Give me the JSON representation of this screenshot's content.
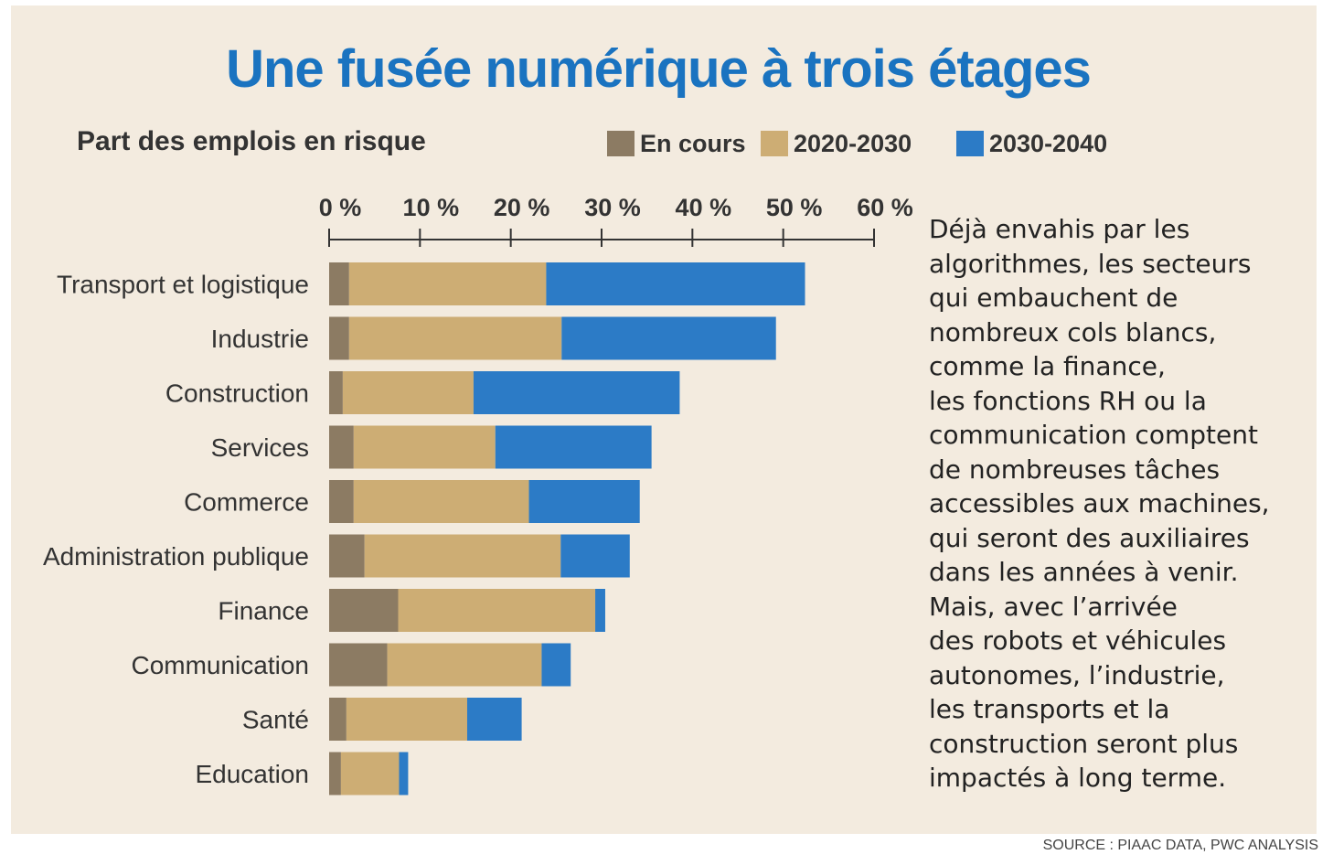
{
  "chart_data": {
    "type": "bar",
    "orientation": "horizontal",
    "stacked": true,
    "title": "Une fusée numérique à trois étages",
    "subtitle": "Part des emplois en risque",
    "xlim": [
      0,
      60
    ],
    "x_ticks": [
      {
        "value": 0,
        "label": "0 %"
      },
      {
        "value": 10,
        "label": "10 %"
      },
      {
        "value": 20,
        "label": "20 %"
      },
      {
        "value": 30,
        "label": "30 %"
      },
      {
        "value": 40,
        "label": "40 %"
      },
      {
        "value": 50,
        "label": "50 %"
      },
      {
        "value": 60,
        "label": "60 %"
      }
    ],
    "legend_position": "top",
    "categories": [
      "Transport et logistique",
      "Industrie",
      "Construction",
      "Services",
      "Commerce",
      "Administration publique",
      "Finance",
      "Communication",
      "Santé",
      "Education"
    ],
    "series": [
      {
        "name": "En cours",
        "color": "#8c7b63",
        "values": [
          2.2,
          2.2,
          1.5,
          2.7,
          2.7,
          3.9,
          7.6,
          6.4,
          1.9,
          1.3
        ]
      },
      {
        "name": "2020-2030",
        "color": "#cdad74",
        "values": [
          21.7,
          23.4,
          14.4,
          15.6,
          19.3,
          21.6,
          21.7,
          17.0,
          13.3,
          6.4
        ]
      },
      {
        "name": "2030-2040",
        "color": "#2c7bc6",
        "values": [
          28.5,
          23.6,
          22.7,
          17.2,
          12.2,
          7.6,
          1.1,
          3.2,
          6.0,
          1.0
        ]
      }
    ]
  },
  "description": "Déjà envahis par les\nalgorithmes, les secteurs\nqui embauchent de\nnombreux cols blancs,\ncomme la finance,\nles fonctions RH ou la\ncommunication comptent\nde nombreuses tâches\naccessibles aux machines,\nqui seront des auxiliaires\ndans les années à venir.\nMais, avec l’arrivée\ndes robots et véhicules\nautonomes, l’industrie,\nles transports et la\nconstruction seront plus\nimpactés à long terme.",
  "source": "SOURCE : PIAAC DATA, PWC ANALYSIS"
}
